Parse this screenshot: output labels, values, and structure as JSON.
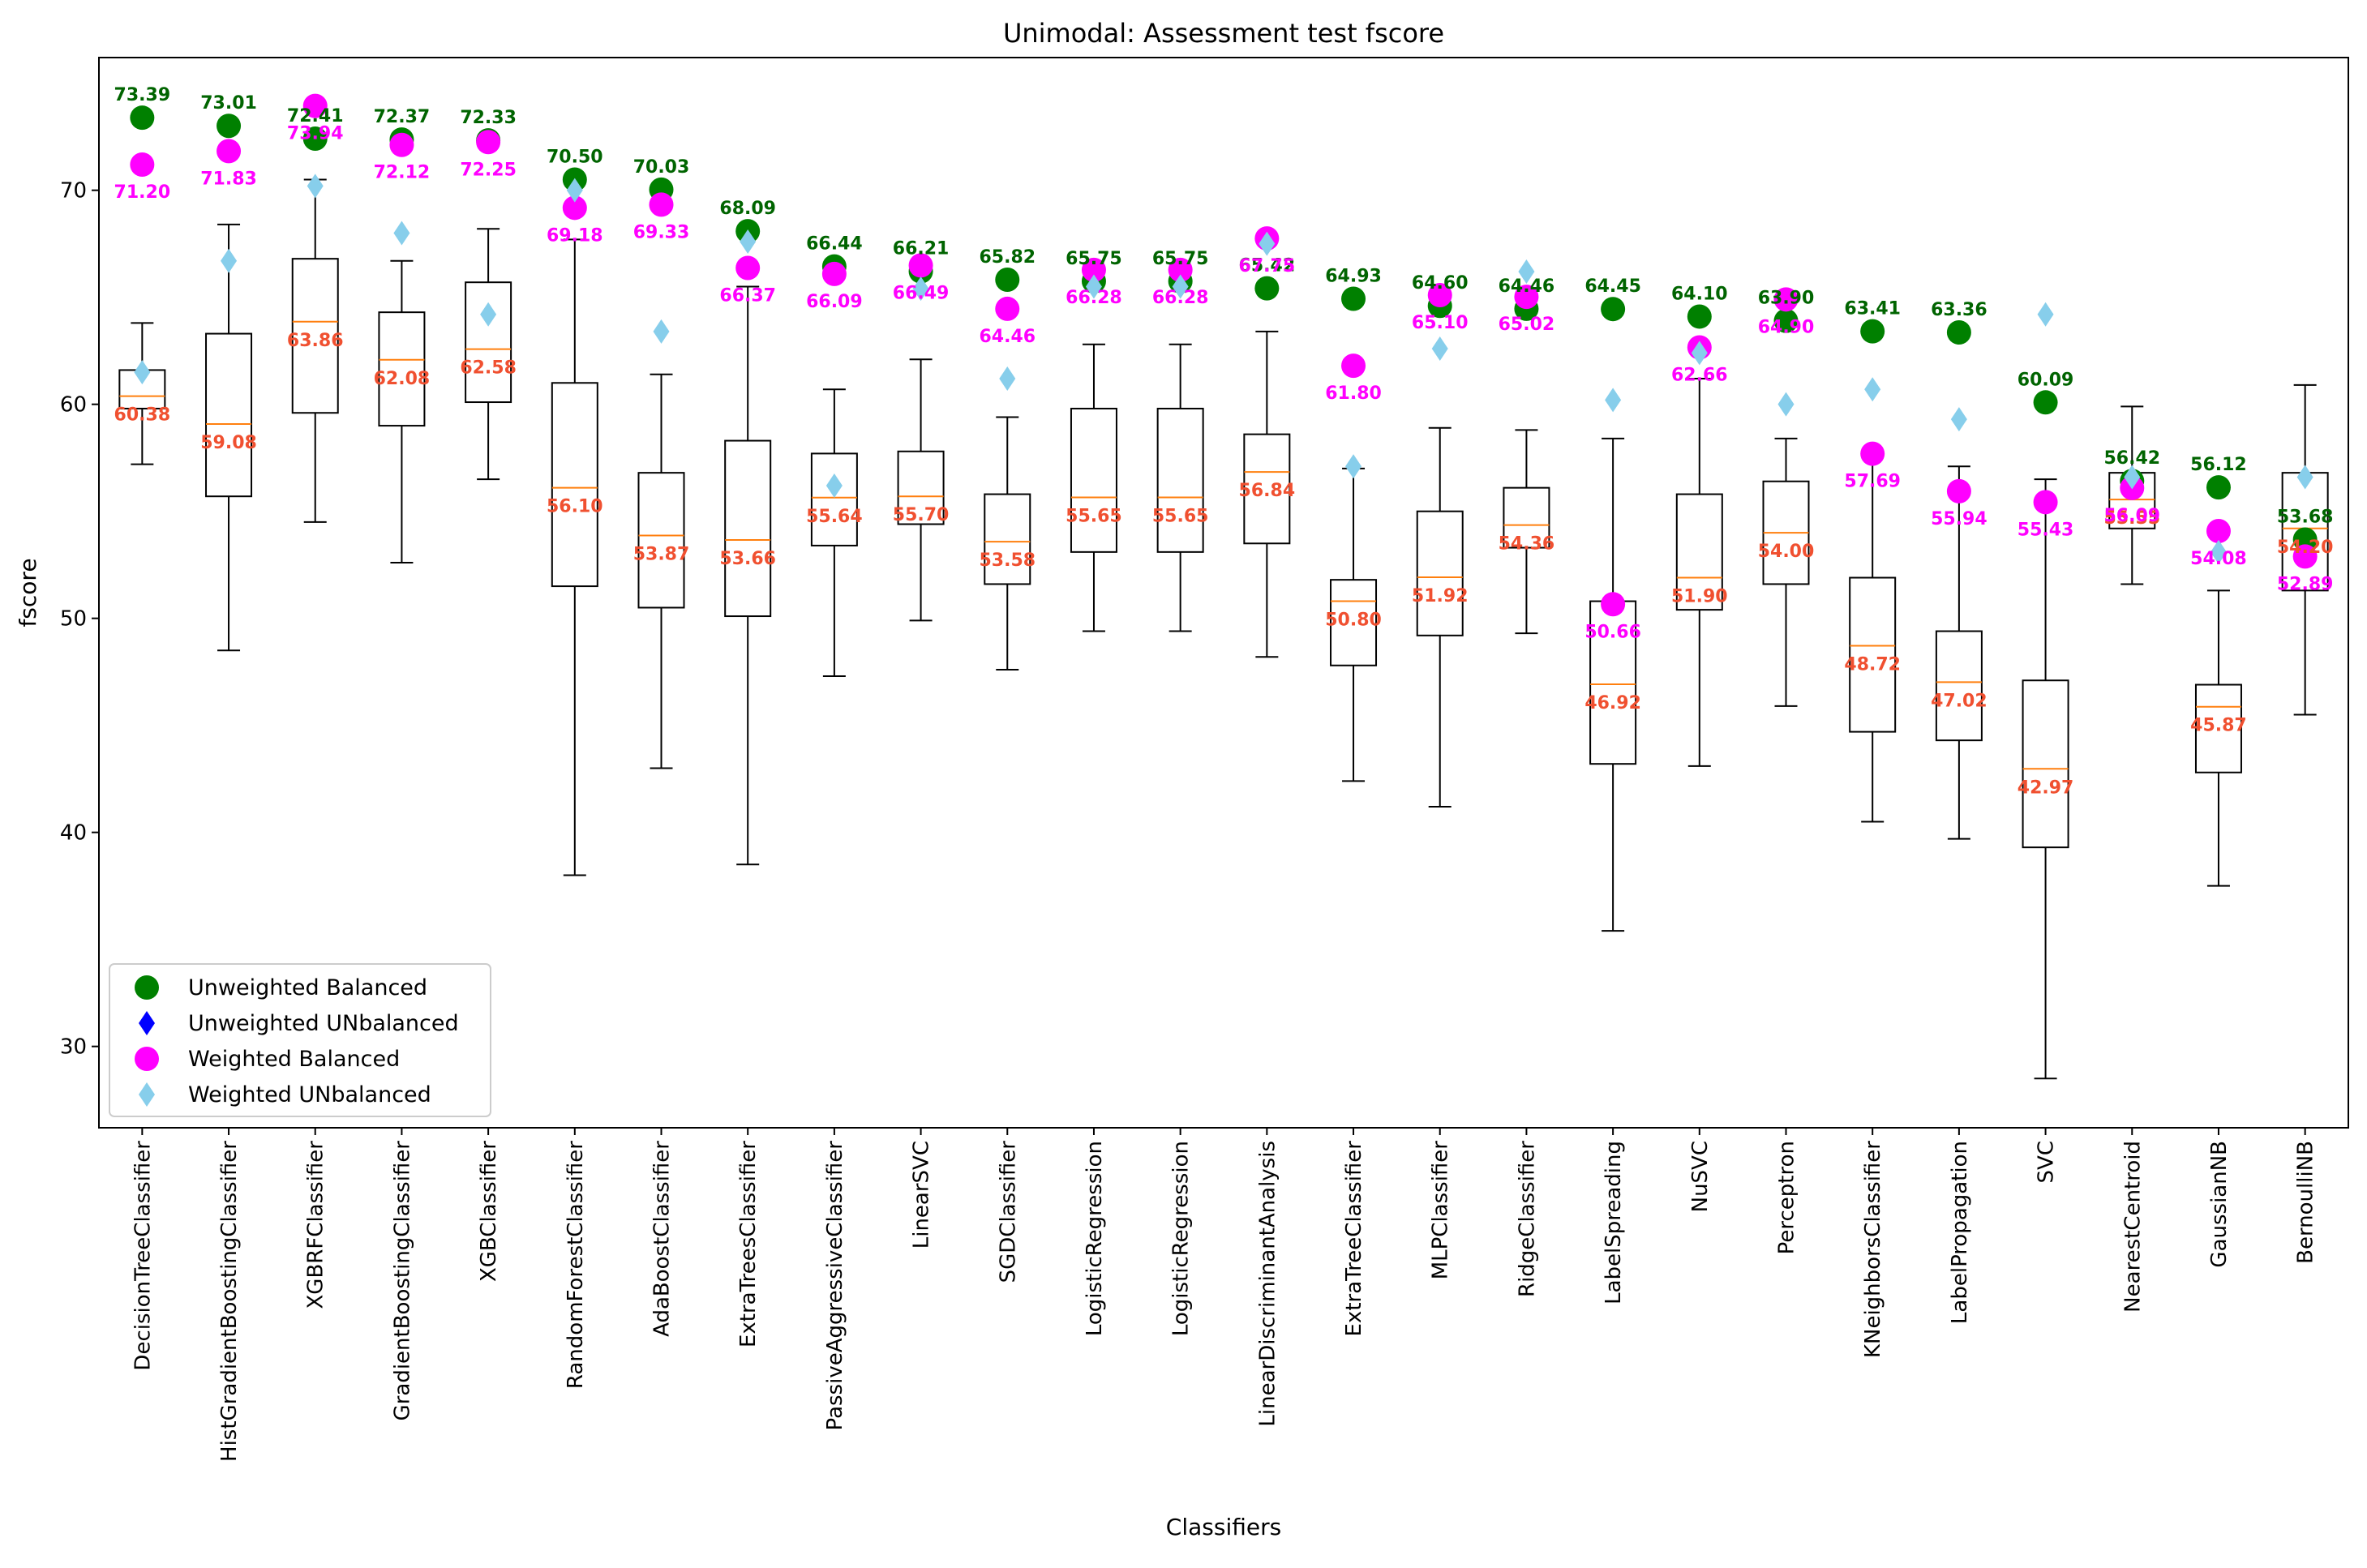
{
  "colors": {
    "unweighted_balanced": "#008000",
    "unweighted_unbalanced": "#0000ff",
    "weighted_balanced": "#ff00ff",
    "weighted_unbalanced": "#87ceeb",
    "median_line": "#ff7f0e",
    "median_label": "#f05030",
    "box": "#000000"
  },
  "chart_data": {
    "type": "box",
    "title": "Unimodal: Assessment test fscore",
    "xlabel": "Classifiers",
    "ylabel": "fscore",
    "ylim": [
      26.2,
      76.2
    ],
    "yticks": [
      30,
      40,
      50,
      60,
      70
    ],
    "grid": false,
    "legend_position": "lower-left",
    "categories": [
      "DecisionTreeClassifier",
      "HistGradientBoostingClassifier",
      "XGBRFClassifier",
      "GradientBoostingClassifier",
      "XGBClassifier",
      "RandomForestClassifier",
      "AdaBoostClassifier",
      "ExtraTreesClassifier",
      "PassiveAggressiveClassifier",
      "LinearSVC",
      "SGDClassifier",
      "LogisticRegression",
      "LogisticRegression",
      "LinearDiscriminantAnalysis",
      "ExtraTreeClassifier",
      "MLPClassifier",
      "RidgeClassifier",
      "LabelSpreading",
      "NuSVC",
      "Perceptron",
      "KNeighborsClassifier",
      "LabelPropagation",
      "SVC",
      "NearestCentroid",
      "GaussianNB",
      "BernoulliNB"
    ],
    "boxes": [
      {
        "whislo": 57.2,
        "q1": 59.8,
        "median": 60.38,
        "q3": 61.6,
        "whishi": 63.8
      },
      {
        "whislo": 48.5,
        "q1": 55.7,
        "median": 59.08,
        "q3": 63.3,
        "whishi": 68.4
      },
      {
        "whislo": 54.5,
        "q1": 59.6,
        "median": 63.86,
        "q3": 66.8,
        "whishi": 70.5
      },
      {
        "whislo": 52.6,
        "q1": 59.0,
        "median": 62.08,
        "q3": 64.3,
        "whishi": 66.7
      },
      {
        "whislo": 56.5,
        "q1": 60.1,
        "median": 62.58,
        "q3": 65.7,
        "whishi": 68.2
      },
      {
        "whislo": 38.0,
        "q1": 51.5,
        "median": 56.1,
        "q3": 61.0,
        "whishi": 67.7
      },
      {
        "whislo": 43.0,
        "q1": 50.5,
        "median": 53.87,
        "q3": 56.8,
        "whishi": 61.4
      },
      {
        "whislo": 38.5,
        "q1": 50.1,
        "median": 53.66,
        "q3": 58.3,
        "whishi": 65.5
      },
      {
        "whislo": 47.3,
        "q1": 53.4,
        "median": 55.64,
        "q3": 57.7,
        "whishi": 60.7
      },
      {
        "whislo": 49.9,
        "q1": 54.4,
        "median": 55.7,
        "q3": 57.8,
        "whishi": 62.1
      },
      {
        "whislo": 47.6,
        "q1": 51.6,
        "median": 53.58,
        "q3": 55.8,
        "whishi": 59.4
      },
      {
        "whislo": 49.4,
        "q1": 53.1,
        "median": 55.65,
        "q3": 59.8,
        "whishi": 62.8
      },
      {
        "whislo": 49.4,
        "q1": 53.1,
        "median": 55.65,
        "q3": 59.8,
        "whishi": 62.8
      },
      {
        "whislo": 48.2,
        "q1": 53.5,
        "median": 56.84,
        "q3": 58.6,
        "whishi": 63.4
      },
      {
        "whislo": 42.4,
        "q1": 47.8,
        "median": 50.8,
        "q3": 51.8,
        "whishi": 57.0
      },
      {
        "whislo": 41.2,
        "q1": 49.2,
        "median": 51.92,
        "q3": 55.0,
        "whishi": 58.9
      },
      {
        "whislo": 49.3,
        "q1": 53.3,
        "median": 54.36,
        "q3": 56.1,
        "whishi": 58.8
      },
      {
        "whislo": 35.4,
        "q1": 43.2,
        "median": 46.92,
        "q3": 50.8,
        "whishi": 58.4
      },
      {
        "whislo": 43.1,
        "q1": 50.4,
        "median": 51.9,
        "q3": 55.8,
        "whishi": 61.2
      },
      {
        "whislo": 45.9,
        "q1": 51.6,
        "median": 54.0,
        "q3": 56.4,
        "whishi": 58.4
      },
      {
        "whislo": 40.5,
        "q1": 44.7,
        "median": 48.72,
        "q3": 51.9,
        "whishi": 57.6
      },
      {
        "whislo": 39.7,
        "q1": 44.3,
        "median": 47.02,
        "q3": 49.4,
        "whishi": 57.1
      },
      {
        "whislo": 28.5,
        "q1": 39.3,
        "median": 42.97,
        "q3": 47.1,
        "whishi": 56.5
      },
      {
        "whislo": 51.6,
        "q1": 54.2,
        "median": 55.55,
        "q3": 56.8,
        "whishi": 59.9
      },
      {
        "whislo": 37.5,
        "q1": 42.8,
        "median": 45.87,
        "q3": 46.9,
        "whishi": 51.3
      },
      {
        "whislo": 45.5,
        "q1": 51.3,
        "median": 54.2,
        "q3": 56.8,
        "whishi": 60.9
      }
    ],
    "median_labels": [
      "60.38",
      "59.08",
      "63.86",
      "62.08",
      "62.58",
      "56.10",
      "53.87",
      "53.66",
      "55.64",
      "55.70",
      "53.58",
      "55.65",
      "55.65",
      "56.84",
      "50.80",
      "51.92",
      "54.36",
      "46.92",
      "51.90",
      "54.00",
      "48.72",
      "47.02",
      "42.97",
      "55.55",
      "45.87",
      "54.20"
    ],
    "series": [
      {
        "name": "Unweighted Balanced",
        "marker": "circle",
        "values": [
          73.39,
          73.01,
          72.41,
          72.37,
          72.33,
          70.5,
          70.03,
          68.09,
          66.44,
          66.21,
          65.82,
          65.75,
          65.75,
          65.42,
          64.93,
          64.6,
          64.46,
          64.45,
          64.1,
          63.9,
          63.41,
          63.36,
          60.09,
          56.42,
          56.12,
          53.68
        ],
        "labels": [
          "73.39",
          "73.01",
          "72.41",
          "72.37",
          "72.33",
          "70.50",
          "70.03",
          "68.09",
          "66.44",
          "66.21",
          "65.82",
          "65.75",
          "65.75",
          "65.42",
          "64.93",
          "64.60",
          "64.46",
          "64.45",
          "64.10",
          "63.90",
          "63.41",
          "63.36",
          "60.09",
          "56.42",
          "56.12",
          "53.68"
        ]
      },
      {
        "name": "Unweighted UNbalanced",
        "marker": "diamond",
        "values": []
      },
      {
        "name": "Weighted Balanced",
        "marker": "circle",
        "values": [
          71.2,
          71.83,
          73.94,
          72.12,
          72.25,
          69.18,
          69.33,
          66.37,
          66.09,
          66.49,
          64.46,
          66.28,
          66.28,
          67.75,
          61.8,
          65.1,
          65.02,
          50.66,
          62.66,
          64.9,
          57.69,
          55.94,
          55.43,
          56.09,
          54.08,
          52.89
        ],
        "labels": [
          "71.20",
          "71.83",
          "73.94",
          "72.12",
          "72.25",
          "69.18",
          "69.33",
          "66.37",
          "66.09",
          "66.49",
          "64.46",
          "66.28",
          "66.28",
          "67.75",
          "61.80",
          "65.10",
          "65.02",
          "50.66",
          "62.66",
          "64.90",
          "57.69",
          "55.94",
          "55.43",
          "56.09",
          "54.08",
          "52.89"
        ]
      },
      {
        "name": "Weighted UNbalanced",
        "marker": "diamond",
        "values": [
          61.5,
          66.7,
          70.2,
          68.0,
          64.2,
          70.0,
          63.4,
          67.6,
          56.2,
          65.4,
          61.2,
          65.5,
          65.5,
          67.5,
          57.1,
          62.6,
          66.2,
          60.2,
          62.4,
          60.0,
          60.7,
          59.3,
          64.2,
          56.6,
          53.1,
          56.6
        ]
      }
    ]
  }
}
